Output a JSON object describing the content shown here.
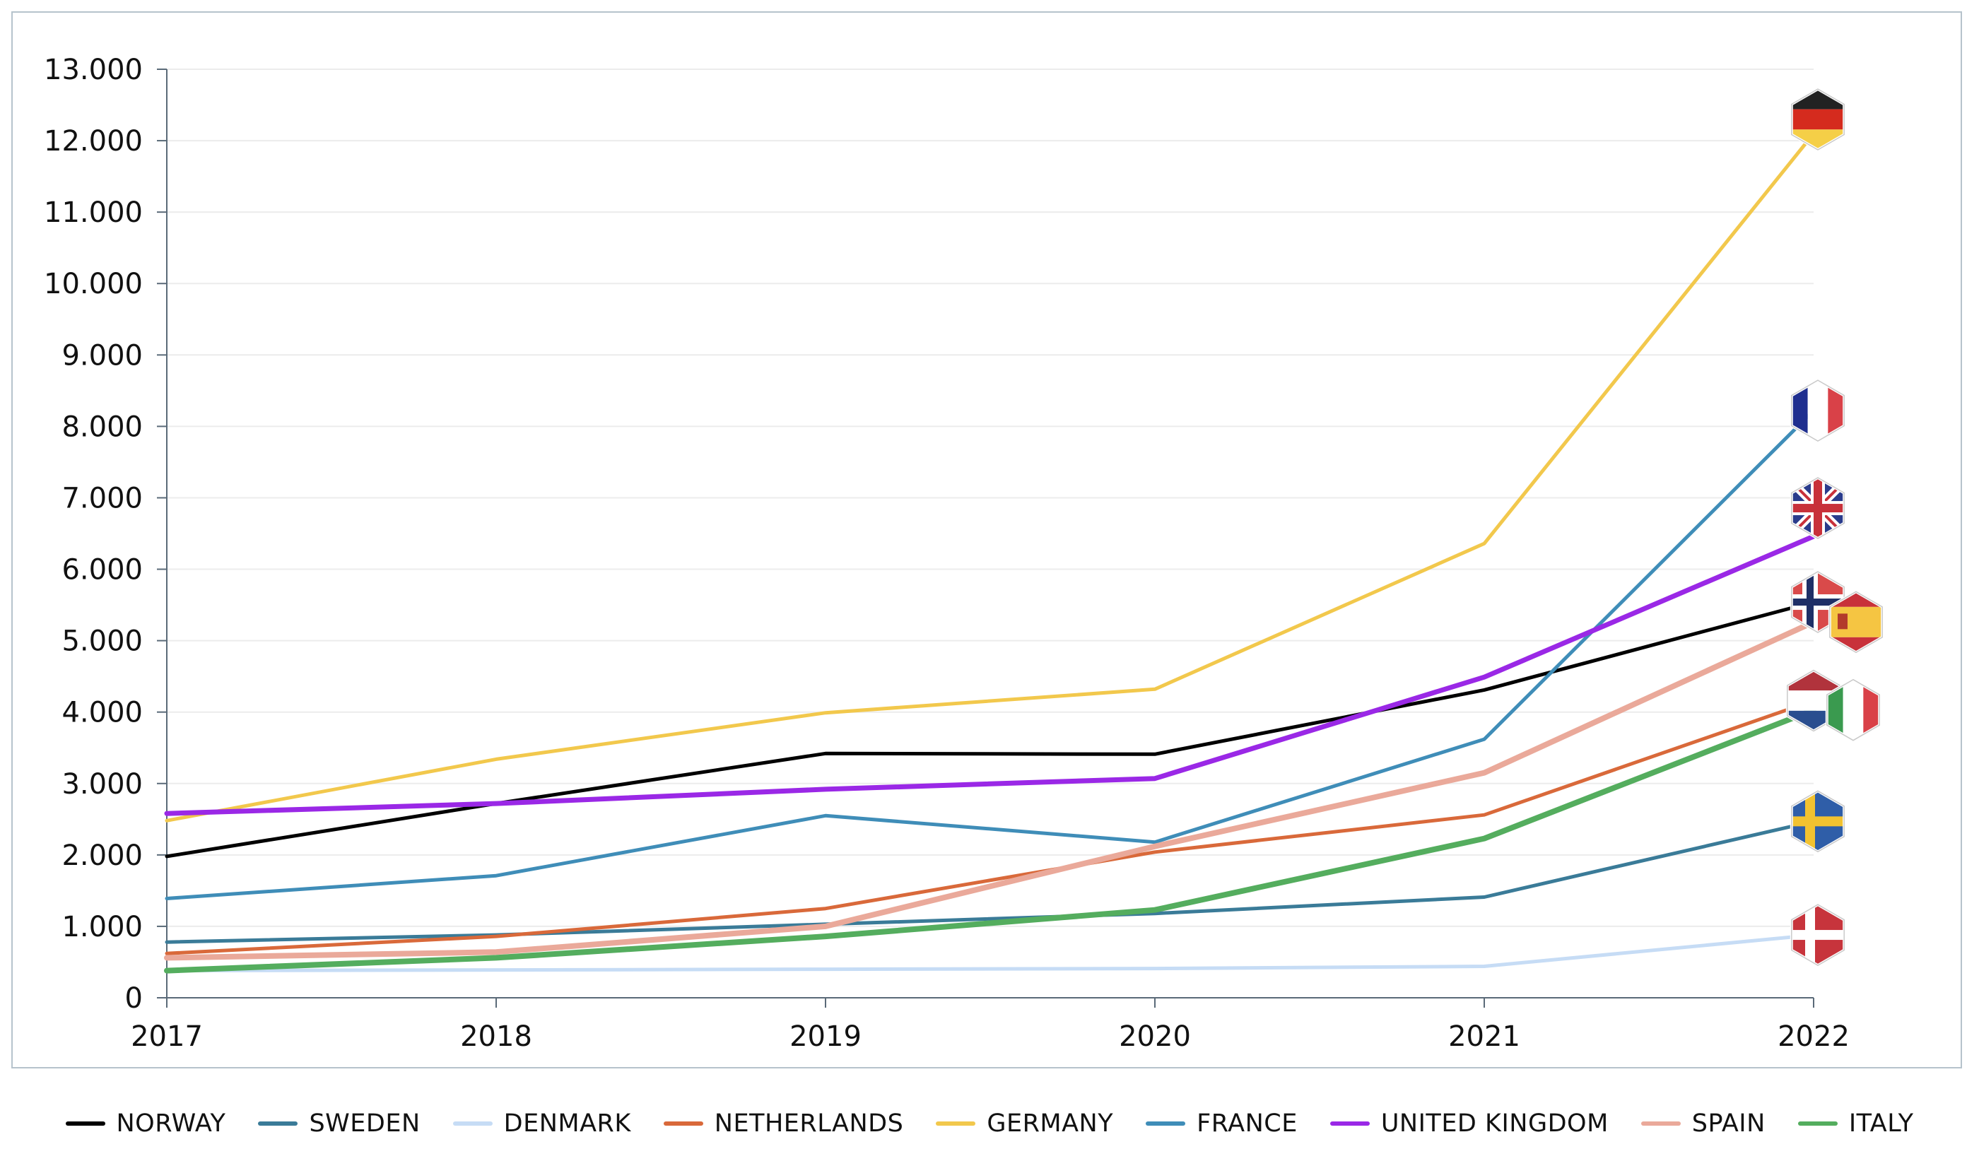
{
  "chart_data": {
    "type": "line",
    "title": "",
    "xlabel": "",
    "ylabel": "",
    "x": [
      "2017",
      "2018",
      "2019",
      "2020",
      "2021",
      "2022"
    ],
    "ylim": [
      0,
      13000
    ],
    "yticks": [
      0,
      1000,
      2000,
      3000,
      4000,
      5000,
      6000,
      7000,
      8000,
      9000,
      10000,
      11000,
      12000,
      13000
    ],
    "ytick_labels": [
      "0",
      "1.000",
      "2.000",
      "3.000",
      "4.000",
      "5.000",
      "6.000",
      "7.000",
      "8.000",
      "9.000",
      "10.000",
      "11.000",
      "12.000",
      "13.000"
    ],
    "grid": true,
    "legend_position": "bottom",
    "end_markers": "hexagonal country flags at each series endpoint",
    "series": [
      {
        "name": "NORWAY",
        "color": "#000000",
        "flag": "norway",
        "values": [
          1980,
          2720,
          3420,
          3410,
          4310,
          5540
        ]
      },
      {
        "name": "SWEDEN",
        "color": "#3a7b98",
        "flag": "sweden",
        "values": [
          780,
          880,
          1030,
          1180,
          1410,
          2470
        ]
      },
      {
        "name": "DENMARK",
        "color": "#c6dcf5",
        "flag": "denmark",
        "values": [
          380,
          390,
          400,
          410,
          440,
          880
        ]
      },
      {
        "name": "NETHERLANDS",
        "color": "#d9693a",
        "flag": "netherlands",
        "values": [
          620,
          860,
          1250,
          2040,
          2560,
          4160
        ]
      },
      {
        "name": "GERMANY",
        "color": "#f2c84c",
        "flag": "germany",
        "values": [
          2480,
          3340,
          3990,
          4320,
          6360,
          12100
        ]
      },
      {
        "name": "FRANCE",
        "color": "#3f8db8",
        "flag": "france",
        "values": [
          1390,
          1710,
          2550,
          2180,
          3620,
          8220
        ]
      },
      {
        "name": "UNITED KINGDOM",
        "color": "#9a28e6",
        "flag": "united-kingdom",
        "values": [
          2580,
          2720,
          2920,
          3070,
          4490,
          6460
        ]
      },
      {
        "name": "SPAIN",
        "color": "#eaa99a",
        "flag": "spain",
        "values": [
          560,
          640,
          1000,
          2120,
          3150,
          5260
        ]
      },
      {
        "name": "ITALY",
        "color": "#54ad5e",
        "flag": "italy",
        "values": [
          380,
          560,
          860,
          1230,
          2230,
          4030
        ]
      }
    ]
  }
}
